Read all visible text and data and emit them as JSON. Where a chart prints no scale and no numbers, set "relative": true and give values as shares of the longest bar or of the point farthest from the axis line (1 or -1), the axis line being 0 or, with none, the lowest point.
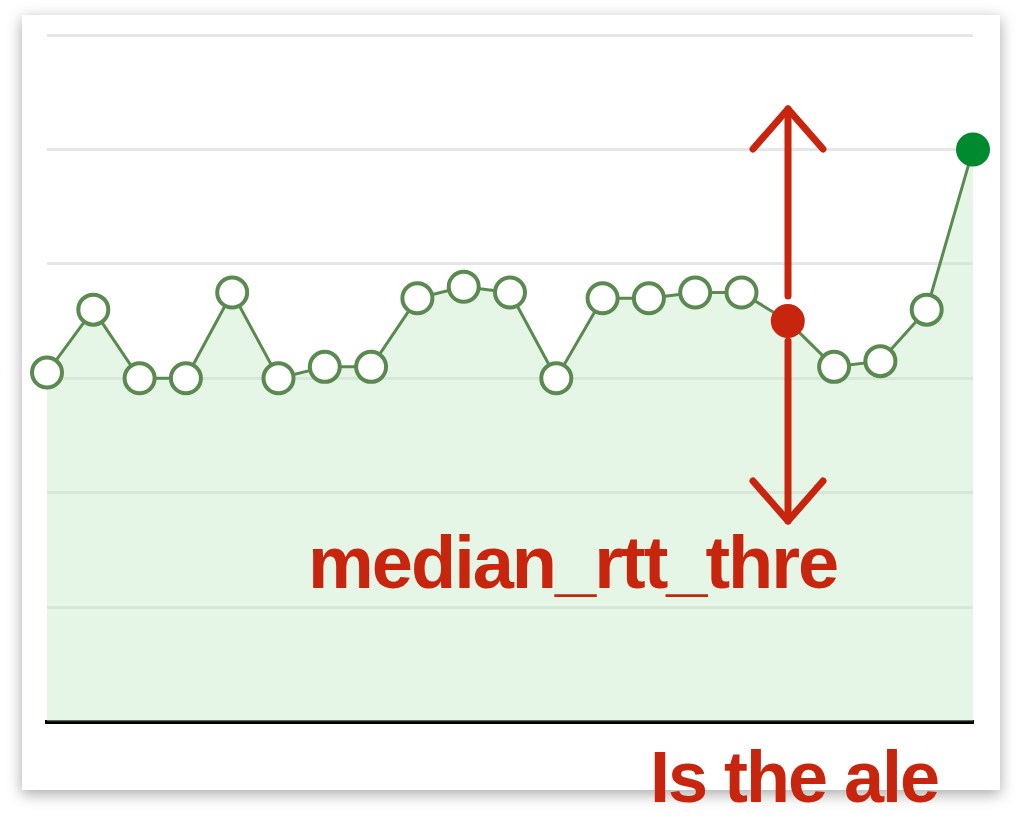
{
  "chart_data": {
    "type": "area",
    "relative": true,
    "grid": "y",
    "marker": "circle",
    "categories": [
      null,
      null,
      null,
      null,
      null,
      null,
      null,
      null,
      null,
      null,
      null,
      null,
      null,
      null,
      null,
      null,
      null,
      null,
      null,
      null,
      null
    ],
    "series": [
      {
        "color": "#5a8a50",
        "colors": [
          "#5a8a50",
          "#5a8a50",
          "#5a8a50",
          "#5a8a50",
          "#5a8a50",
          "#5a8a50",
          "#5a8a50",
          "#5a8a50",
          "#5a8a50",
          "#5a8a50",
          "#5a8a50",
          "#5a8a50",
          "#5a8a50",
          "#5a8a50",
          "#5a8a50",
          "#5a8a50",
          "#c8250e",
          "#5a8a50",
          "#5a8a50",
          "#5a8a50",
          "#008a30"
        ],
        "values": [
          0.61,
          0.72,
          0.6,
          0.6,
          0.75,
          0.6,
          0.62,
          0.62,
          0.74,
          0.76,
          0.75,
          0.6,
          0.74,
          0.74,
          0.75,
          0.75,
          0.7,
          0.62,
          0.63,
          0.72,
          1
        ]
      }
    ],
    "annotations": [
      "median_rtt_thre",
      "Is the ale"
    ]
  }
}
